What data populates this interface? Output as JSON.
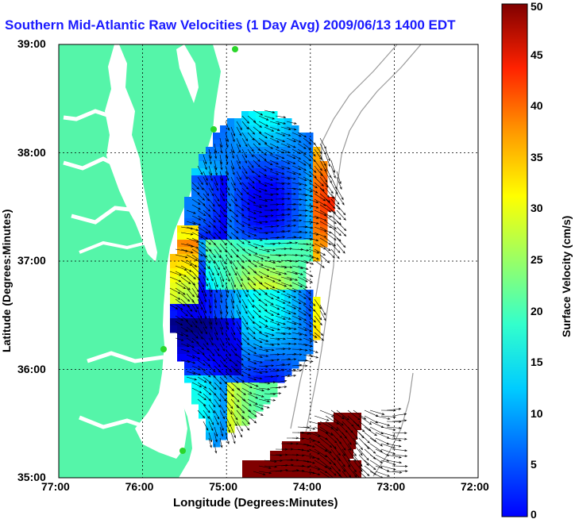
{
  "title": "Southern Mid-Atlantic Raw Velocities (1 Day Avg) 2009/06/13 1400 EDT",
  "axes": {
    "xlabel": "Longitude (Degrees:Minutes)",
    "ylabel": "Latitude (Degrees:Minutes)",
    "x_ticks": [
      "77:00",
      "76:00",
      "75:00",
      "74:00",
      "73:00",
      "72:00"
    ],
    "y_ticks": [
      "39:00",
      "38:00",
      "37:00",
      "36:00",
      "35:00"
    ],
    "xlim": [
      -77,
      -72
    ],
    "ylim": [
      35,
      39
    ],
    "grid": "dotted"
  },
  "colorbar": {
    "label": "Surface Velocity (cm/s)",
    "ticks": [
      "50",
      "45",
      "40",
      "35",
      "30",
      "25",
      "20",
      "15",
      "10",
      "5",
      "0"
    ],
    "range": [
      0,
      50
    ],
    "colormap": "jet"
  },
  "colors": {
    "land": "#55f5a9",
    "title": "#1a1aff",
    "contour": "#9a9a9a",
    "station": "#2bd62b"
  }
}
